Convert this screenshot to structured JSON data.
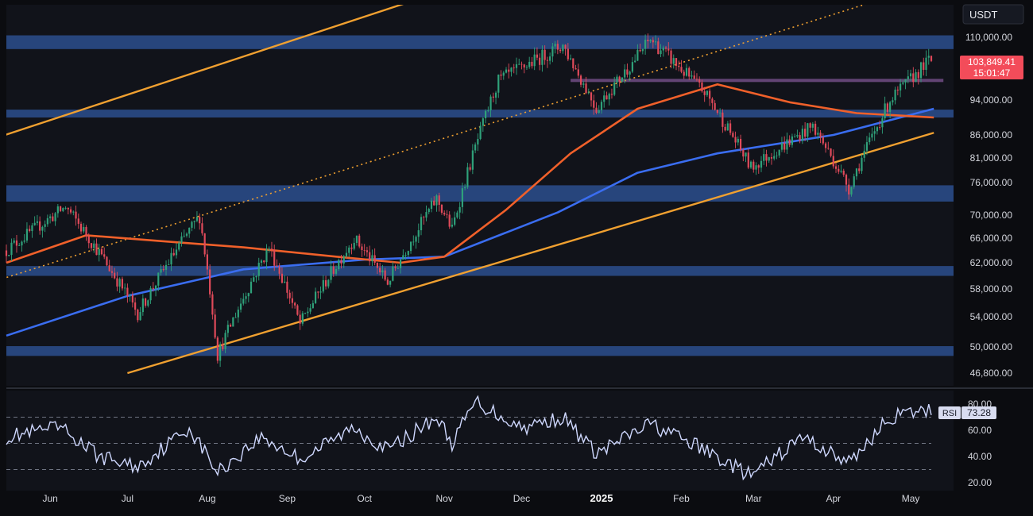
{
  "chart_data": [
    {
      "type": "candlestick",
      "quote_currency": "USDT",
      "last_price": "103,849.41",
      "countdown": "15:01:47",
      "y_ticks": [
        "110,000.00",
        "94,000.00",
        "86,000.00",
        "81,000.00",
        "76,000.00",
        "70,000.00",
        "66,000.00",
        "62,000.00",
        "58,000.00",
        "54,000.00",
        "50,000.00",
        "46,800.00"
      ],
      "y_tick_values": [
        110000,
        94000,
        86000,
        81000,
        76000,
        70000,
        66000,
        62000,
        58000,
        54000,
        50000,
        46800
      ],
      "x_ticks": [
        "Jun",
        "Jul",
        "Aug",
        "Sep",
        "Oct",
        "Nov",
        "Dec",
        "2025",
        "Feb",
        "Mar",
        "Apr",
        "May"
      ],
      "key_points": [
        {
          "date": "2024-05-15",
          "price": 64000
        },
        {
          "date": "2024-06-07",
          "price": 71500
        },
        {
          "date": "2024-07-05",
          "price": 54500
        },
        {
          "date": "2024-07-29",
          "price": 69800
        },
        {
          "date": "2024-08-05",
          "price": 49000
        },
        {
          "date": "2024-08-25",
          "price": 64500
        },
        {
          "date": "2024-09-06",
          "price": 53000
        },
        {
          "date": "2024-09-27",
          "price": 66000
        },
        {
          "date": "2024-10-10",
          "price": 59000
        },
        {
          "date": "2024-10-29",
          "price": 73000
        },
        {
          "date": "2024-11-04",
          "price": 67500
        },
        {
          "date": "2024-11-22",
          "price": 99000
        },
        {
          "date": "2024-12-17",
          "price": 108000
        },
        {
          "date": "2024-12-30",
          "price": 92000
        },
        {
          "date": "2025-01-20",
          "price": 109500
        },
        {
          "date": "2025-02-10",
          "price": 96000
        },
        {
          "date": "2025-02-28",
          "price": 79000
        },
        {
          "date": "2025-03-24",
          "price": 88000
        },
        {
          "date": "2025-04-07",
          "price": 75000
        },
        {
          "date": "2025-04-23",
          "price": 94000
        },
        {
          "date": "2025-05-08",
          "price": 104000
        }
      ],
      "moving_averages": [
        {
          "color": "#3a6df0",
          "points": [
            {
              "date": "2024-05-15",
              "price": 51500
            },
            {
              "date": "2024-07-01",
              "price": 57000
            },
            {
              "date": "2024-08-15",
              "price": 61000
            },
            {
              "date": "2024-10-01",
              "price": 62500
            },
            {
              "date": "2024-11-01",
              "price": 63000
            },
            {
              "date": "2024-12-15",
              "price": 70500
            },
            {
              "date": "2025-01-15",
              "price": 78000
            },
            {
              "date": "2025-02-15",
              "price": 82000
            },
            {
              "date": "2025-04-01",
              "price": 86000
            },
            {
              "date": "2025-05-10",
              "price": 92000
            }
          ]
        },
        {
          "color": "#f0602a",
          "points": [
            {
              "date": "2024-05-15",
              "price": 62000
            },
            {
              "date": "2024-06-15",
              "price": 66500
            },
            {
              "date": "2024-07-15",
              "price": 65500
            },
            {
              "date": "2024-08-15",
              "price": 64500
            },
            {
              "date": "2024-09-20",
              "price": 63000
            },
            {
              "date": "2024-10-15",
              "price": 62000
            },
            {
              "date": "2024-11-01",
              "price": 63000
            },
            {
              "date": "2024-11-25",
              "price": 71000
            },
            {
              "date": "2024-12-20",
              "price": 82000
            },
            {
              "date": "2025-01-15",
              "price": 92000
            },
            {
              "date": "2025-02-15",
              "price": 98000
            },
            {
              "date": "2025-03-15",
              "price": 93500
            },
            {
              "date": "2025-04-10",
              "price": 91000
            },
            {
              "date": "2025-05-10",
              "price": 90000
            }
          ]
        }
      ],
      "zones": [
        {
          "from": 107000,
          "to": 110500,
          "color": "#2b4f8e"
        },
        {
          "from": 90000,
          "to": 91800,
          "color": "#2b4f8e"
        },
        {
          "from": 72500,
          "to": 75500,
          "color": "#2b4f8e"
        },
        {
          "from": 60000,
          "to": 61500,
          "color": "#2b4f8e"
        },
        {
          "from": 48900,
          "to": 50100,
          "color": "#2b4f8e"
        }
      ],
      "level_lines": [
        {
          "price": 99000,
          "start": "2024-12-20",
          "end": "2025-05-10",
          "color": "#6b4a7e"
        }
      ],
      "trendlines": [
        {
          "p1": {
            "date": "2024-05-01",
            "price": 83500
          },
          "p2": {
            "date": "2024-11-15",
            "price": 125000
          },
          "style": "solid",
          "color": "#f0a030"
        },
        {
          "p1": {
            "date": "2024-07-01",
            "price": 46800
          },
          "p2": {
            "date": "2025-05-10",
            "price": 86500
          },
          "style": "solid",
          "color": "#f0a030"
        },
        {
          "p1": {
            "date": "2024-05-01",
            "price": 58000
          },
          "p2": {
            "date": "2025-05-10",
            "price": 124000
          },
          "style": "dotted",
          "color": "#f0a030"
        }
      ],
      "colors": {
        "up": "#2fa17a",
        "down": "#e04a5a",
        "background": "#11131a",
        "price_tag": "#f34c5a"
      }
    },
    {
      "type": "line",
      "indicator": "RSI",
      "label": "RSI",
      "value": "73.28",
      "y_ticks": [
        "80.00",
        "60.00",
        "40.00",
        "20.00"
      ],
      "y_tick_values": [
        80,
        60,
        40,
        20
      ],
      "levels": [
        70,
        50,
        30
      ],
      "key_points": [
        {
          "date": "2024-05-15",
          "value": 55
        },
        {
          "date": "2024-06-05",
          "value": 62
        },
        {
          "date": "2024-06-20",
          "value": 40
        },
        {
          "date": "2024-07-05",
          "value": 32
        },
        {
          "date": "2024-07-25",
          "value": 62
        },
        {
          "date": "2024-08-05",
          "value": 28
        },
        {
          "date": "2024-08-22",
          "value": 55
        },
        {
          "date": "2024-09-06",
          "value": 38
        },
        {
          "date": "2024-09-27",
          "value": 62
        },
        {
          "date": "2024-10-10",
          "value": 45
        },
        {
          "date": "2024-10-29",
          "value": 70
        },
        {
          "date": "2024-11-04",
          "value": 50
        },
        {
          "date": "2024-11-13",
          "value": 82
        },
        {
          "date": "2024-12-01",
          "value": 62
        },
        {
          "date": "2024-12-17",
          "value": 70
        },
        {
          "date": "2024-12-30",
          "value": 42
        },
        {
          "date": "2025-01-20",
          "value": 65
        },
        {
          "date": "2025-02-10",
          "value": 45
        },
        {
          "date": "2025-02-28",
          "value": 25
        },
        {
          "date": "2025-03-20",
          "value": 55
        },
        {
          "date": "2025-04-07",
          "value": 35
        },
        {
          "date": "2025-04-23",
          "value": 70
        },
        {
          "date": "2025-05-08",
          "value": 75
        }
      ],
      "color": "#cfd8ff"
    }
  ]
}
